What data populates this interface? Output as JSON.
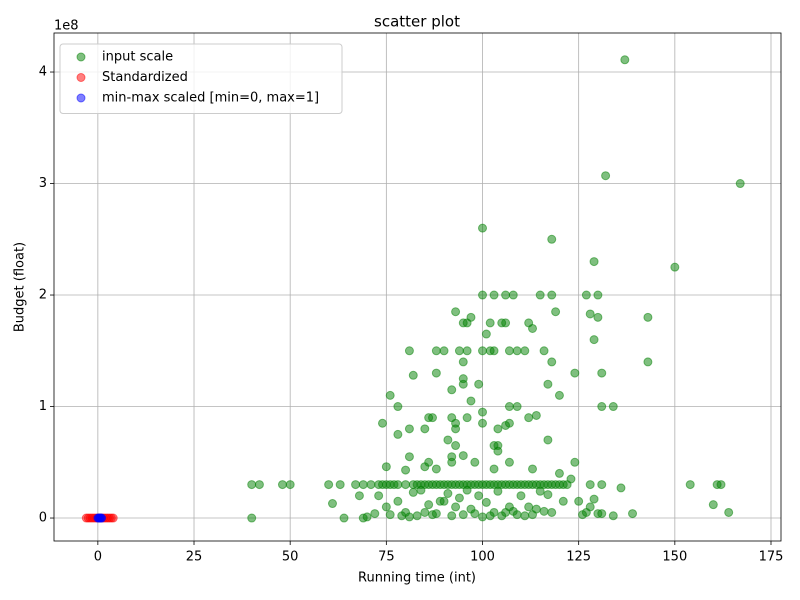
{
  "chart_data": {
    "type": "scatter",
    "title": "scatter plot",
    "x_label": "Running time (int)",
    "y_label": "Budget (float)",
    "y_offset_label": "1e8",
    "xlim": [
      -11.4,
      177.6
    ],
    "ylim": [
      -0.206,
      4.35
    ],
    "xticks": [
      0,
      25,
      50,
      75,
      100,
      125,
      150,
      175
    ],
    "yticks": [
      0,
      1,
      2,
      3,
      4
    ],
    "grid": true,
    "legend": "upper left",
    "alpha": 0.5,
    "series": [
      {
        "name": "input scale",
        "color": "green",
        "x": [
          137,
          132,
          167,
          100,
          118,
          129,
          150,
          100,
          103,
          106,
          108,
          115,
          118,
          127,
          130,
          93,
          119,
          128,
          130,
          143,
          97,
          95,
          96,
          102,
          105,
          106,
          112,
          113,
          101,
          129,
          81,
          88,
          90,
          94,
          96,
          100,
          102,
          103,
          107,
          109,
          111,
          116,
          95,
          118,
          143,
          88,
          82,
          124,
          131,
          95,
          95,
          117,
          99,
          92,
          76,
          120,
          97,
          78,
          107,
          109,
          131,
          134,
          100,
          114,
          112,
          86,
          87,
          92,
          96,
          74,
          93,
          100,
          107,
          106,
          81,
          85,
          93,
          104,
          78,
          91,
          117,
          103,
          104,
          93,
          104,
          81,
          92,
          95,
          86,
          92,
          98,
          107,
          124,
          75,
          80,
          85,
          88,
          103,
          113,
          40,
          42,
          48,
          50,
          60,
          63,
          67,
          69,
          71,
          73,
          74,
          75,
          76,
          77,
          78,
          80,
          82,
          83,
          84,
          85,
          86,
          87,
          88,
          89,
          90,
          91,
          92,
          93,
          94,
          95,
          96,
          97,
          98,
          99,
          100,
          101,
          102,
          103,
          104,
          105,
          106,
          107,
          108,
          109,
          110,
          111,
          112,
          113,
          114,
          115,
          116,
          117,
          118,
          119,
          120,
          121,
          122,
          128,
          131,
          154,
          161,
          162,
          61,
          68,
          73,
          75,
          78,
          80,
          82,
          84,
          86,
          88,
          89,
          90,
          91,
          93,
          94,
          96,
          97,
          99,
          101,
          103,
          104,
          105,
          107,
          108,
          110,
          112,
          114,
          115,
          117,
          118,
          120,
          121,
          123,
          125,
          126,
          127,
          128,
          129,
          130,
          131,
          134,
          136,
          139,
          160,
          164,
          70,
          72,
          76,
          79,
          81,
          83,
          85,
          87,
          92,
          95,
          98,
          100,
          102,
          106,
          109,
          111,
          113,
          116,
          40,
          64,
          69
        ],
        "y": [
          4.11,
          3.07,
          3.0,
          2.6,
          2.5,
          2.3,
          2.25,
          2.0,
          2.0,
          2.0,
          2.0,
          2.0,
          2.0,
          2.0,
          2.0,
          1.85,
          1.85,
          1.83,
          1.8,
          1.8,
          1.8,
          1.75,
          1.75,
          1.75,
          1.75,
          1.75,
          1.75,
          1.7,
          1.65,
          1.6,
          1.5,
          1.5,
          1.5,
          1.5,
          1.5,
          1.5,
          1.5,
          1.5,
          1.5,
          1.5,
          1.5,
          1.5,
          1.4,
          1.4,
          1.4,
          1.3,
          1.28,
          1.3,
          1.3,
          1.25,
          1.2,
          1.2,
          1.2,
          1.15,
          1.1,
          1.1,
          1.05,
          1.0,
          1.0,
          1.0,
          1.0,
          1.0,
          0.95,
          0.92,
          0.9,
          0.9,
          0.9,
          0.9,
          0.9,
          0.85,
          0.85,
          0.85,
          0.85,
          0.83,
          0.8,
          0.8,
          0.8,
          0.8,
          0.75,
          0.7,
          0.7,
          0.65,
          0.65,
          0.65,
          0.6,
          0.55,
          0.55,
          0.56,
          0.5,
          0.5,
          0.5,
          0.5,
          0.5,
          0.46,
          0.43,
          0.46,
          0.44,
          0.44,
          0.44,
          0.3,
          0.3,
          0.3,
          0.3,
          0.3,
          0.3,
          0.3,
          0.3,
          0.3,
          0.3,
          0.3,
          0.3,
          0.3,
          0.3,
          0.3,
          0.3,
          0.3,
          0.3,
          0.3,
          0.3,
          0.3,
          0.3,
          0.3,
          0.3,
          0.3,
          0.3,
          0.3,
          0.3,
          0.3,
          0.3,
          0.3,
          0.3,
          0.3,
          0.3,
          0.3,
          0.3,
          0.3,
          0.3,
          0.3,
          0.3,
          0.3,
          0.3,
          0.3,
          0.3,
          0.3,
          0.3,
          0.3,
          0.3,
          0.3,
          0.3,
          0.3,
          0.3,
          0.3,
          0.3,
          0.3,
          0.3,
          0.3,
          0.3,
          0.3,
          0.3,
          0.3,
          0.3,
          0.13,
          0.2,
          0.2,
          0.1,
          0.15,
          0.05,
          0.23,
          0.25,
          0.12,
          0.04,
          0.15,
          0.15,
          0.22,
          0.1,
          0.18,
          0.25,
          0.08,
          0.2,
          0.14,
          0.05,
          0.24,
          0.02,
          0.1,
          0.06,
          0.2,
          0.1,
          0.08,
          0.24,
          0.21,
          0.05,
          0.4,
          0.15,
          0.35,
          0.15,
          0.03,
          0.05,
          0.1,
          0.17,
          0.04,
          0.04,
          0.02,
          0.27,
          0.04,
          0.12,
          0.05,
          0.01,
          0.04,
          0.03,
          0.02,
          0.01,
          0.02,
          0.05,
          0.03,
          0.02,
          0.03,
          0.04,
          0.01,
          0.02,
          0.05,
          0.03,
          0.02,
          0.03,
          0.06,
          0,
          0,
          0
        ]
      },
      {
        "name": "Standardized",
        "color": "red",
        "x": [
          -3,
          -2.5,
          -2,
          -1.5,
          -1,
          -0.5,
          0,
          0.5,
          1,
          1.5,
          2,
          2.5,
          3,
          3.5,
          4
        ],
        "y": [
          0,
          0,
          0,
          0,
          0,
          0,
          0,
          0,
          0,
          0,
          0,
          0,
          0,
          0,
          0
        ]
      },
      {
        "name": "min-max scaled [min=0, max=1]",
        "color": "blue",
        "x": [
          0,
          0.2,
          0.4,
          0.6,
          0.8,
          1
        ],
        "y": [
          0,
          0,
          0,
          0,
          0,
          0
        ]
      }
    ]
  }
}
